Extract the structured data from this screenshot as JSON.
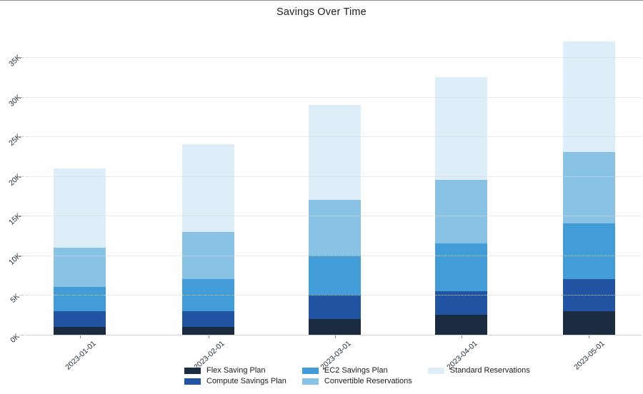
{
  "title": "Savings Over Time",
  "chart_data": {
    "type": "bar",
    "stacked": true,
    "title": "Savings Over Time",
    "xlabel": "",
    "ylabel": "",
    "categories": [
      "2023-01-01",
      "2023-02-01",
      "2023-03-01",
      "2023-04-01",
      "2023-05-01"
    ],
    "series": [
      {
        "name": "Flex Saving Plan",
        "color": "#1c2c40",
        "values": [
          1000,
          1000,
          2000,
          2500,
          3000
        ]
      },
      {
        "name": "Compute Savings Plan",
        "color": "#2155a3",
        "values": [
          2000,
          2000,
          3000,
          3000,
          4000
        ]
      },
      {
        "name": "EC2 Savings Plan",
        "color": "#419cd8",
        "values": [
          3000,
          4000,
          5000,
          6000,
          7000
        ]
      },
      {
        "name": "Convertible Reservations",
        "color": "#88c2e4",
        "values": [
          5000,
          6000,
          7000,
          8000,
          9000
        ]
      },
      {
        "name": "Standard Reservations",
        "color": "#ddeef9",
        "values": [
          10000,
          11000,
          12000,
          13000,
          14000
        ]
      }
    ],
    "totals": [
      21000,
      24000,
      29000,
      32500,
      37000
    ],
    "y_ticks": [
      "0K",
      "5K",
      "10K",
      "15K",
      "20K",
      "25K",
      "30K",
      "35K"
    ],
    "ylim": [
      0,
      38000
    ],
    "grid": "horizontal-dotted",
    "legend_position": "bottom-center",
    "legend_columns": [
      [
        "Flex Saving Plan",
        "Compute Savings Plan"
      ],
      [
        "EC2 Savings Plan",
        "Convertible Reservations"
      ],
      [
        "Standard Reservations"
      ]
    ]
  }
}
